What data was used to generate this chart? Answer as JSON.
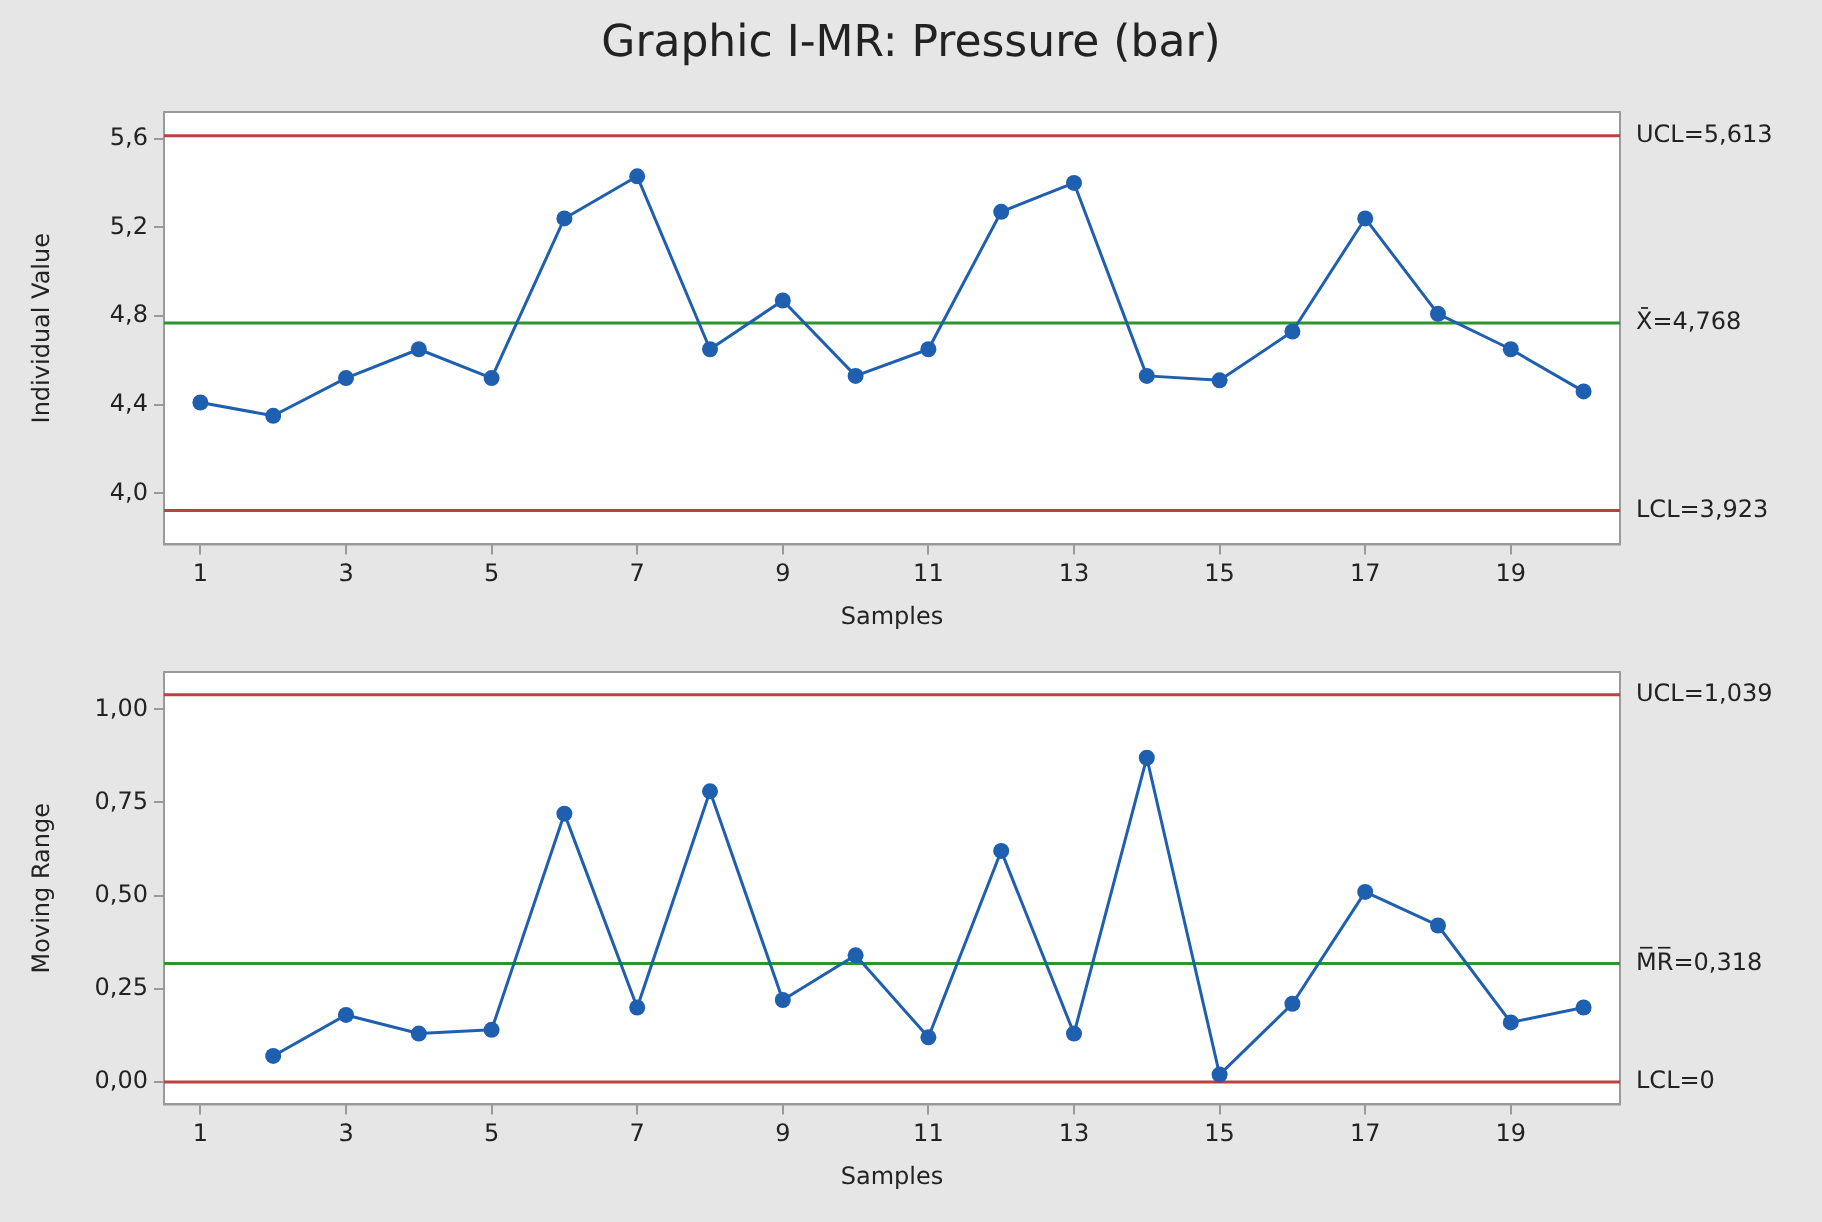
{
  "chart_data": [
    {
      "type": "line",
      "title": "Graphic I-MR: Pressure (bar)",
      "xlabel": "Samples",
      "ylabel": "Individual Value",
      "marker": "circle",
      "line_style": "solid",
      "x": [
        1,
        2,
        3,
        4,
        5,
        6,
        7,
        8,
        9,
        10,
        11,
        12,
        13,
        14,
        15,
        16,
        17,
        18,
        19,
        20
      ],
      "series": [
        {
          "color": "#1f5fb0",
          "values": [
            4.41,
            4.35,
            4.52,
            4.65,
            4.52,
            5.24,
            5.43,
            4.65,
            4.87,
            4.53,
            4.65,
            5.27,
            5.4,
            4.53,
            4.51,
            4.73,
            5.24,
            4.81,
            4.65,
            4.46
          ]
        }
      ],
      "xlim": [
        0.5,
        20.5
      ],
      "xticks": [
        1,
        3,
        5,
        7,
        9,
        11,
        13,
        15,
        17,
        19
      ],
      "ylim": [
        3.77,
        5.72
      ],
      "yticks": [
        {
          "value": 4.0,
          "label": "4,0"
        },
        {
          "value": 4.4,
          "label": "4,4"
        },
        {
          "value": 4.8,
          "label": "4,8"
        },
        {
          "value": 5.2,
          "label": "5,2"
        },
        {
          "value": 5.6,
          "label": "5,6"
        }
      ],
      "ref_lines": [
        {
          "axis": "y",
          "value": 5.613,
          "label": "UCL=5,613",
          "color": "#b8423f"
        },
        {
          "axis": "y",
          "value": 4.768,
          "label": "X̄=4,768",
          "color": "#2b962b"
        },
        {
          "axis": "y",
          "value": 3.923,
          "label": "LCL=3,923",
          "color": "#b8423f"
        }
      ]
    },
    {
      "type": "line",
      "xlabel": "Samples",
      "ylabel": "Moving Range",
      "marker": "circle",
      "line_style": "solid",
      "series": [
        {
          "color": "#1f5fb0",
          "x": [
            2,
            3,
            4,
            5,
            6,
            7,
            8,
            9,
            10,
            11,
            12,
            13,
            14,
            15,
            16,
            17,
            18,
            19,
            20
          ],
          "values": [
            0.07,
            0.18,
            0.13,
            0.14,
            0.72,
            0.2,
            0.78,
            0.22,
            0.34,
            0.12,
            0.62,
            0.13,
            0.87,
            0.02,
            0.21,
            0.51,
            0.42,
            0.16,
            0.2
          ]
        }
      ],
      "xlim": [
        0.5,
        20.5
      ],
      "xticks": [
        1,
        3,
        5,
        7,
        9,
        11,
        13,
        15,
        17,
        19
      ],
      "ylim": [
        -0.06,
        1.1
      ],
      "yticks": [
        {
          "value": 0,
          "label": "0,00"
        },
        {
          "value": 0.25,
          "label": "0,25"
        },
        {
          "value": 0.5,
          "label": "0,50"
        },
        {
          "value": 0.75,
          "label": "0,75"
        },
        {
          "value": 1.0,
          "label": "1,00"
        }
      ],
      "ref_lines": [
        {
          "axis": "y",
          "value": 1.039,
          "label": "UCL=1,039",
          "color": "#b8423f"
        },
        {
          "axis": "y",
          "value": 0.318,
          "label": "M̅R̅=0,318",
          "color": "#2b962b"
        },
        {
          "axis": "y",
          "value": 0,
          "label": "LCL=0",
          "color": "#b8423f"
        }
      ]
    }
  ]
}
